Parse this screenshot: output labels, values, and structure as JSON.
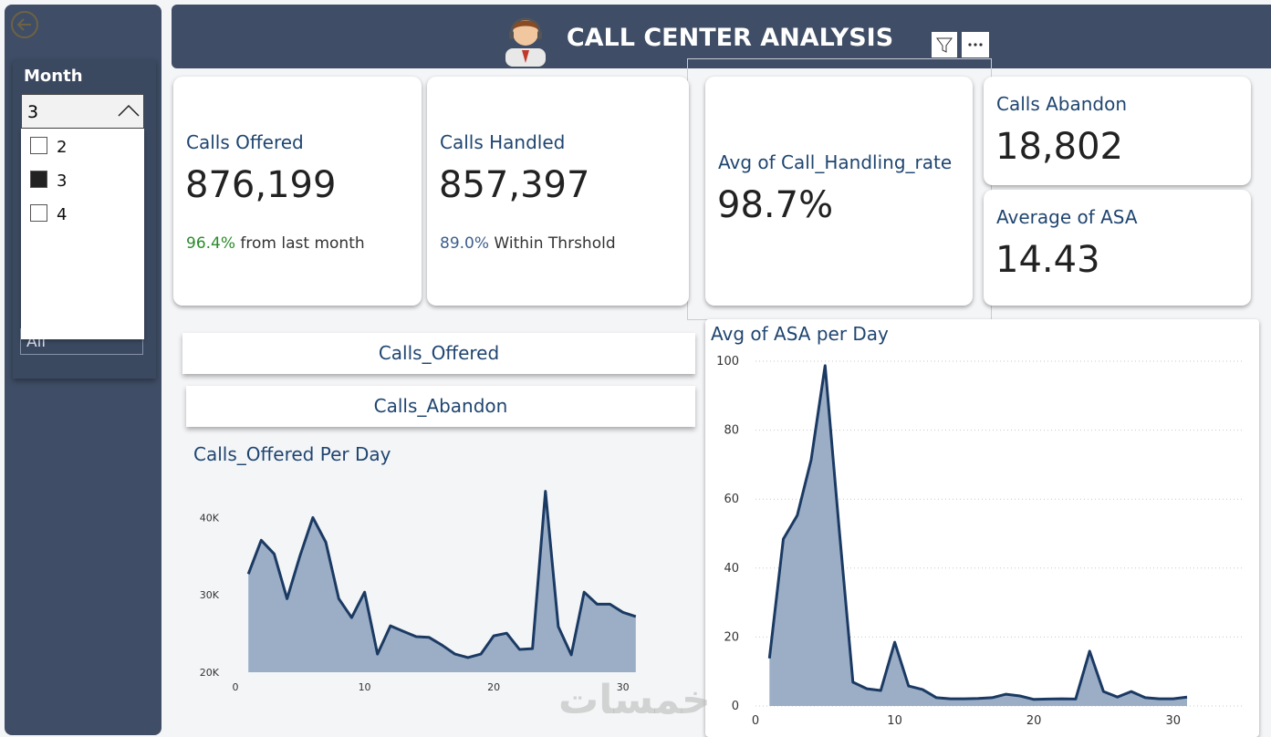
{
  "header": {
    "title": "CALL CENTER ANALYSIS"
  },
  "slicer": {
    "title": "Month",
    "selected": "3",
    "options": [
      "2",
      "3",
      "4"
    ],
    "second_value": "All"
  },
  "kpis": [
    {
      "label": "Calls Offered",
      "value": "876,199",
      "note_value": "96.4%",
      "note_text": "from last month",
      "note_color": "#2a8a2a"
    },
    {
      "label": "Calls Handled",
      "value": "857,397",
      "note_value": "89.0%",
      "note_text": "Within Thrshold",
      "note_color": "#3d5f8c"
    },
    {
      "label": "Avg of Call_Handling_rate",
      "value": "98.7%"
    },
    {
      "label": "Calls Abandon",
      "value": "18,802"
    },
    {
      "label": "Average of ASA",
      "value": "14.43"
    }
  ],
  "buttons": [
    "Calls_Offered",
    "Calls_Abandon"
  ],
  "watermark": "خمسات",
  "chart_data": [
    {
      "type": "area",
      "title": "Calls_Offered Per Day",
      "line_color": "#1b3a63",
      "fill_color": "#9baec6",
      "grid": false,
      "x": [
        1,
        2,
        3,
        4,
        5,
        6,
        7,
        8,
        9,
        10,
        11,
        12,
        13,
        14,
        15,
        16,
        17,
        18,
        19,
        20,
        21,
        22,
        23,
        24,
        25,
        26,
        27,
        28,
        29,
        30,
        31
      ],
      "values": [
        32700,
        37060,
        35300,
        29500,
        35060,
        40000,
        36800,
        29500,
        27060,
        30350,
        22350,
        26000,
        25300,
        24600,
        24500,
        23500,
        22350,
        21900,
        22350,
        24700,
        25050,
        22950,
        23050,
        43400,
        25900,
        22250,
        30350,
        28800,
        28800,
        27750,
        27200
      ],
      "xlim": [
        0,
        32
      ],
      "xticks": [
        0,
        10,
        20,
        30
      ],
      "ylim": [
        20000,
        45000
      ],
      "yticks": [
        {
          "value": 20000,
          "label": "20K"
        },
        {
          "value": 30000,
          "label": "30K"
        },
        {
          "value": 40000,
          "label": "40K"
        }
      ]
    },
    {
      "type": "area",
      "title": "Avg of ASA per Day",
      "line_color": "#1b3a63",
      "fill_color": "#9baec6",
      "grid": true,
      "x": [
        1,
        2,
        3,
        4,
        5,
        6,
        7,
        8,
        9,
        10,
        11,
        12,
        13,
        14,
        15,
        16,
        17,
        18,
        19,
        20,
        21,
        22,
        23,
        24,
        25,
        26,
        27,
        28,
        29,
        30,
        31
      ],
      "values": [
        13.8,
        48.4,
        55.3,
        71.4,
        98.7,
        52,
        6.9,
        5.0,
        4.5,
        18.5,
        5.8,
        4.8,
        2.4,
        2.1,
        2.1,
        2.2,
        2.4,
        3.4,
        2.9,
        1.9,
        2.0,
        2.1,
        2.0,
        15.9,
        4.2,
        2.6,
        4.2,
        2.4,
        2.1,
        2.1,
        2.6
      ],
      "xlim": [
        0,
        35
      ],
      "xticks": [
        0,
        10,
        20,
        30
      ],
      "ylim": [
        0,
        100
      ],
      "yticks": [
        0,
        20,
        40,
        60,
        80,
        100
      ]
    }
  ]
}
